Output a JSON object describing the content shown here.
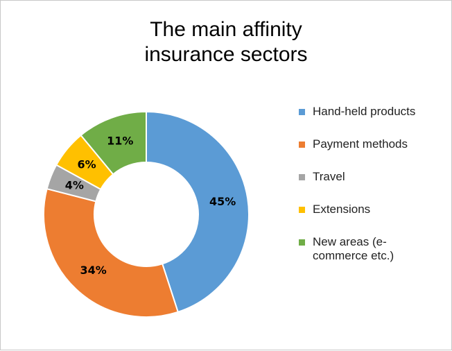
{
  "chart_data": {
    "type": "donut",
    "title": "The main affinity insurance sectors",
    "series": [
      {
        "name": "Hand-held products",
        "color": "#5b9bd5",
        "values": [
          45
        ],
        "value_labels": [
          "45%"
        ]
      },
      {
        "name": "Payment methods",
        "color": "#ed7d31",
        "values": [
          34
        ],
        "value_labels": [
          "34%"
        ]
      },
      {
        "name": "Travel",
        "color": "#a5a5a5",
        "values": [
          4
        ],
        "value_labels": [
          "4%"
        ]
      },
      {
        "name": "Extensions",
        "color": "#ffc000",
        "values": [
          6
        ],
        "value_labels": [
          "6%"
        ]
      },
      {
        "name": "New areas (e-commerce etc.)",
        "color": "#70ad47",
        "values": [
          11
        ],
        "value_labels": [
          "11%"
        ]
      }
    ],
    "legend": "right"
  }
}
